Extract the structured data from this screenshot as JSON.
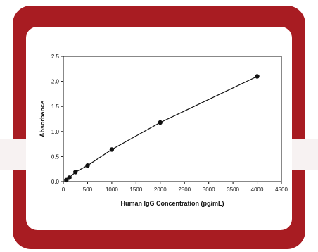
{
  "theme": {
    "frame_color": "#a81c22",
    "card_color": "#ffffff",
    "band_color": "#f7f2f2",
    "ink": "#111111"
  },
  "chart_data": {
    "type": "line",
    "title": "",
    "xlabel": "Human IgG Concentration (pg/mL)",
    "ylabel": "Absorbance",
    "xlim": [
      0,
      4500
    ],
    "ylim": [
      0,
      2.5
    ],
    "x_ticks": [
      "0",
      "500",
      "1000",
      "1500",
      "2000",
      "2500",
      "3000",
      "3500",
      "4000",
      "4500"
    ],
    "y_ticks": [
      "0.0",
      "0.5",
      "1.0",
      "1.5",
      "2.0",
      "2.5"
    ],
    "grid": false,
    "legend": "none",
    "series": [
      {
        "x": [
          62.5,
          125,
          250,
          500,
          1000,
          2000,
          4000
        ],
        "y": [
          0.03,
          0.08,
          0.19,
          0.32,
          0.64,
          1.18,
          2.1
        ]
      }
    ]
  }
}
